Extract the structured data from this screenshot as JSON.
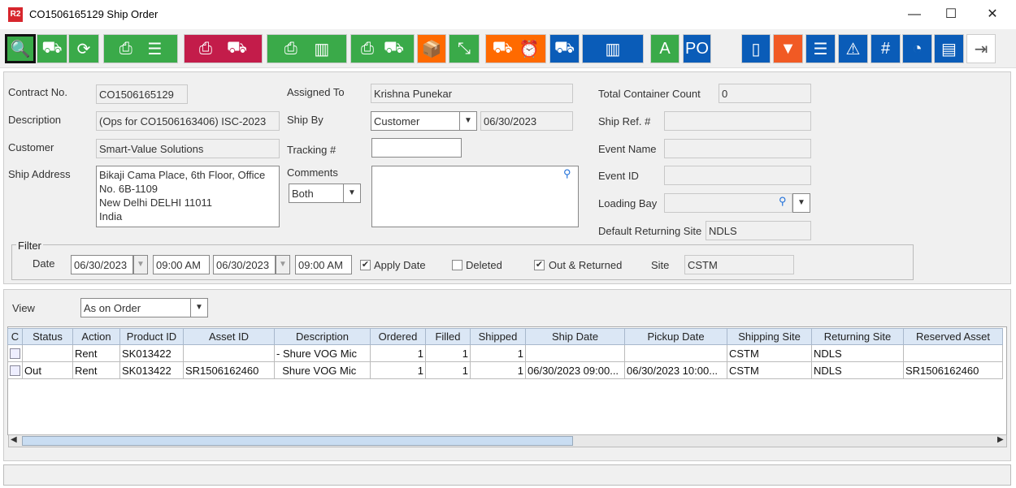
{
  "window": {
    "logo": "R2",
    "title": "CO1506165129 Ship Order",
    "minimize": "—",
    "maximize": "☐",
    "close": "✕"
  },
  "toolbar": [
    {
      "name": "search",
      "color": "#3aaa49",
      "icons": [
        "🔍"
      ]
    },
    {
      "name": "dolly",
      "color": "#3aaa49",
      "icons": [
        "⛟"
      ]
    },
    {
      "name": "refresh",
      "color": "#3aaa49",
      "icons": [
        "⟳"
      ]
    },
    {
      "name": "print-list",
      "color": "#3aaa49",
      "icons": [
        "⎙",
        "☰"
      ]
    },
    {
      "name": "print-delivery",
      "color": "#c31c4a",
      "icons": [
        "⎙",
        "⛟"
      ]
    },
    {
      "name": "print-container",
      "color": "#3aaa49",
      "icons": [
        "⎙",
        "▥"
      ]
    },
    {
      "name": "print-truck-clock",
      "color": "#3aaa49",
      "icons": [
        "⎙",
        "⛟"
      ]
    },
    {
      "name": "box",
      "color": "#ff6a00",
      "icons": [
        "📦"
      ]
    },
    {
      "name": "collapse",
      "color": "#3aaa49",
      "icons": [
        "⤡"
      ]
    },
    {
      "name": "truck-alarm",
      "color": "#ff6a00",
      "icons": [
        "⛟",
        "⏰"
      ]
    },
    {
      "name": "st-truck",
      "color": "#0a5cb8",
      "icons": [
        "⛟"
      ]
    },
    {
      "name": "container",
      "color": "#0a5cb8",
      "icons": [
        "▥"
      ]
    },
    {
      "name": "expand-a",
      "color": "#3aaa49",
      "icons": [
        "A"
      ]
    },
    {
      "name": "po-view",
      "color": "#0a5cb8",
      "icons": [
        "PO"
      ]
    },
    {
      "name": "book",
      "color": "#0a5cb8",
      "icons": [
        "▯"
      ]
    },
    {
      "name": "filter",
      "color": "#f15a24",
      "icons": [
        "▼"
      ]
    },
    {
      "name": "list",
      "color": "#0a5cb8",
      "icons": [
        "☰"
      ]
    },
    {
      "name": "warning-view",
      "color": "#0a5cb8",
      "icons": [
        "⚠"
      ]
    },
    {
      "name": "hash",
      "color": "#0a5cb8",
      "icons": [
        "#"
      ]
    },
    {
      "name": "gauge",
      "color": "#0a5cb8",
      "icons": [
        "◔"
      ]
    },
    {
      "name": "comment",
      "color": "#0a5cb8",
      "icons": [
        "▤"
      ]
    },
    {
      "name": "exit",
      "color": "#ffffff",
      "icons": [
        "⇥"
      ]
    }
  ],
  "form": {
    "contract_no_label": "Contract No.",
    "contract_no": "CO1506165129",
    "description_label": "Description",
    "description": "(Ops for CO1506163406) ISC-2023",
    "customer_label": "Customer",
    "customer": "Smart-Value Solutions",
    "ship_address_label": "Ship Address",
    "ship_address": "Bikaji Cama Place, 6th Floor, Office\nNo. 6B-1109\nNew Delhi DELHI 11011\nIndia",
    "assigned_to_label": "Assigned To",
    "assigned_to": "Krishna Punekar",
    "ship_by_label": "Ship By",
    "ship_by": "Customer",
    "ship_by_date": "06/30/2023",
    "tracking_label": "Tracking #",
    "tracking": "",
    "comments_label": "Comments",
    "comments_filter": "Both",
    "comments": "",
    "total_container_label": "Total Container Count",
    "total_container": "0",
    "ship_ref_label": "Ship Ref. #",
    "ship_ref": "",
    "event_name_label": "Event Name",
    "event_name": "",
    "event_id_label": "Event ID",
    "event_id": "",
    "loading_bay_label": "Loading Bay",
    "loading_bay": "",
    "default_returning_label": "Default Returning Site",
    "default_returning": "NDLS"
  },
  "filter": {
    "title": "Filter",
    "date_label": "Date",
    "from_date": "06/30/2023",
    "from_time": "09:00 AM",
    "to_date": "06/30/2023",
    "to_time": "09:00 AM",
    "apply_date_label": "Apply Date",
    "apply_date": true,
    "deleted_label": "Deleted",
    "deleted": false,
    "out_returned_label": "Out & Returned",
    "out_returned": true,
    "site_label": "Site",
    "site": "CSTM"
  },
  "view": {
    "label": "View",
    "value": "As on Order"
  },
  "table": {
    "columns": [
      "C",
      "Status",
      "Action",
      "Product ID",
      "Asset ID",
      "Description",
      "Ordered",
      "Filled",
      "Shipped",
      "Ship Date",
      "Pickup Date",
      "Shipping Site",
      "Returning Site",
      "Reserved Asset"
    ],
    "rows": [
      [
        "",
        "",
        "Rent",
        "SK013422",
        "",
        "- Shure VOG Mic",
        "1",
        "1",
        "1",
        "",
        "",
        "CSTM",
        "NDLS",
        ""
      ],
      [
        "",
        "Out",
        "Rent",
        "SK013422",
        "SR1506162460",
        "  Shure VOG Mic",
        "1",
        "1",
        "1",
        "06/30/2023 09:00...",
        "06/30/2023 10:00...",
        "CSTM",
        "NDLS",
        "SR1506162460"
      ]
    ]
  }
}
